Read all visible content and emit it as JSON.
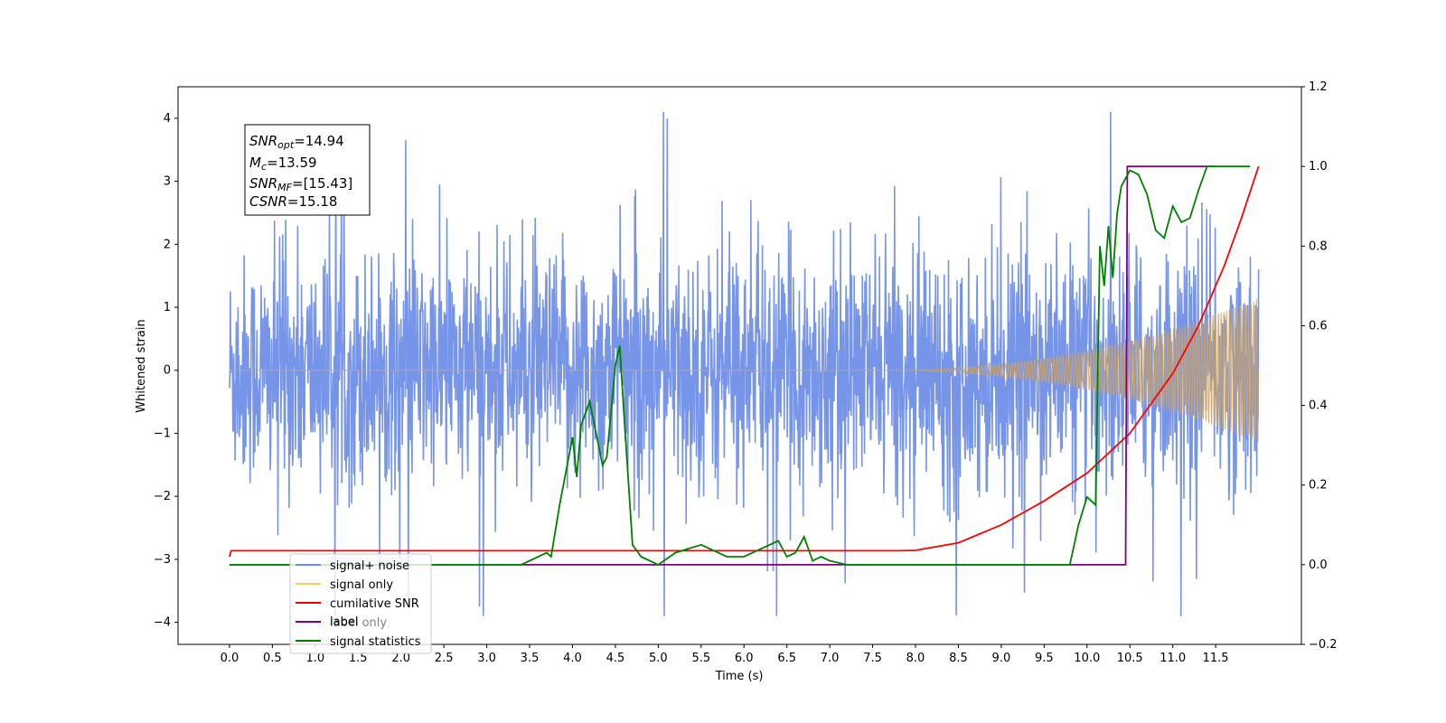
{
  "chart_data": {
    "type": "line",
    "xlabel": "Time (s)",
    "ylabel": "Whitened strain",
    "xlim": [
      -0.6,
      12.5
    ],
    "ylim": [
      -4.35,
      4.5
    ],
    "y2lim": [
      -0.2,
      1.2
    ],
    "x_ticks": [
      "0.0",
      "0.5",
      "1.0",
      "1.5",
      "2.0",
      "2.5",
      "3.0",
      "3.5",
      "4.0",
      "4.5",
      "5.0",
      "5.5",
      "6.0",
      "6.5",
      "7.0",
      "7.5",
      "8.0",
      "8.5",
      "9.0",
      "9.5",
      "10.0",
      "10.5",
      "11.0",
      "11.5"
    ],
    "y_ticks": [
      "−4",
      "−3",
      "−2",
      "−1",
      "0",
      "1",
      "2",
      "3",
      "4"
    ],
    "y2_ticks": [
      "−0.2",
      "0.0",
      "0.2",
      "0.4",
      "0.6",
      "0.8",
      "1.0",
      "1.2"
    ],
    "annotation": {
      "lines": [
        {
          "symbol": "SNR",
          "sub": "opt",
          "text": "=14.94"
        },
        {
          "symbol": "M",
          "sub": "c",
          "text": "=13.59"
        },
        {
          "symbol": "SNR",
          "sub": "MF",
          "text": "=[15.43]"
        },
        {
          "symbol": "CSNR",
          "sub": "",
          "text": "=15.18"
        }
      ]
    },
    "legend": {
      "position": "lower-left",
      "entries": [
        {
          "label": "signal+ noise",
          "color": "#6b8ce6"
        },
        {
          "label": "signal only",
          "color": "#ffc857"
        },
        {
          "label": "cumilative SNR",
          "color": "#ff0000"
        },
        {
          "label": "label",
          "color": "#800080"
        },
        {
          "label": "signal statistics",
          "color": "#008000"
        }
      ],
      "hidden_label": "label only"
    },
    "series": [
      {
        "name": "signal+ noise",
        "axis": "left",
        "color": "#6b8ce6",
        "description_values": {
          "noise_band_y": [
            -1.3,
            1.3
          ],
          "peak_max": 4.1,
          "peak_min": -3.9,
          "x_range": [
            0.0,
            12.0
          ]
        }
      },
      {
        "name": "signal only",
        "axis": "left",
        "color": "#d2a35a",
        "chirp": {
          "start": 7.5,
          "end": 12.0,
          "amp_end": 1.15
        }
      },
      {
        "name": "cumilative SNR",
        "axis": "right",
        "color": "#ff0000",
        "x": [
          0.0,
          0.02,
          7.8,
          8.0,
          8.5,
          9.0,
          9.5,
          10.0,
          10.5,
          11.0,
          11.3,
          11.6,
          11.8,
          12.0
        ],
        "y": [
          0.02,
          0.035,
          0.035,
          0.036,
          0.055,
          0.1,
          0.16,
          0.23,
          0.33,
          0.48,
          0.6,
          0.75,
          0.87,
          1.0
        ]
      },
      {
        "name": "label",
        "axis": "right",
        "color": "#800080",
        "x": [
          0.0,
          10.45,
          10.47,
          11.5
        ],
        "y": [
          0.0,
          0.0,
          1.0,
          1.0
        ]
      },
      {
        "name": "signal statistics",
        "axis": "right",
        "color": "#008000",
        "x": [
          0.0,
          3.4,
          3.5,
          3.7,
          3.75,
          3.85,
          4.0,
          4.05,
          4.1,
          4.2,
          4.35,
          4.4,
          4.5,
          4.55,
          4.6,
          4.7,
          4.8,
          4.9,
          5.0,
          5.2,
          5.5,
          5.8,
          6.0,
          6.3,
          6.4,
          6.5,
          6.6,
          6.7,
          6.8,
          6.9,
          7.0,
          7.2,
          7.5,
          8.0,
          9.8,
          9.9,
          10.0,
          10.1,
          10.15,
          10.2,
          10.25,
          10.3,
          10.35,
          10.4,
          10.5,
          10.6,
          10.7,
          10.8,
          10.9,
          11.0,
          11.1,
          11.2,
          11.3,
          11.4,
          11.5,
          11.8,
          11.9
        ],
        "y": [
          0.0,
          0.0,
          0.01,
          0.03,
          0.02,
          0.15,
          0.32,
          0.22,
          0.35,
          0.41,
          0.25,
          0.27,
          0.5,
          0.55,
          0.38,
          0.05,
          0.02,
          0.01,
          0.0,
          0.03,
          0.05,
          0.02,
          0.02,
          0.05,
          0.06,
          0.02,
          0.03,
          0.07,
          0.01,
          0.02,
          0.01,
          0.0,
          0.0,
          0.0,
          0.0,
          0.1,
          0.17,
          0.15,
          0.8,
          0.7,
          0.85,
          0.72,
          0.88,
          0.95,
          0.99,
          0.98,
          0.93,
          0.84,
          0.82,
          0.9,
          0.86,
          0.87,
          0.94,
          1.0,
          1.0,
          1.0,
          1.0
        ]
      }
    ]
  }
}
